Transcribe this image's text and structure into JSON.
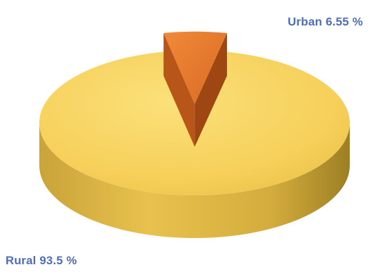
{
  "chart_data": {
    "type": "pie",
    "title": "",
    "slices": [
      {
        "label": "Rural",
        "value": 93.5,
        "display_value": "93.5 %",
        "color": "#f7d25a"
      },
      {
        "label": "Urban",
        "value": 6.55,
        "display_value": "6.55 %",
        "color": "#e6782c"
      }
    ],
    "style": "3d-exploded",
    "exploded_slice": "Urban",
    "legend": "none"
  },
  "labels": {
    "urban_name": "Urban",
    "urban_value": "6.55 %",
    "rural_name": "Rural",
    "rural_value": "93.5 %"
  }
}
